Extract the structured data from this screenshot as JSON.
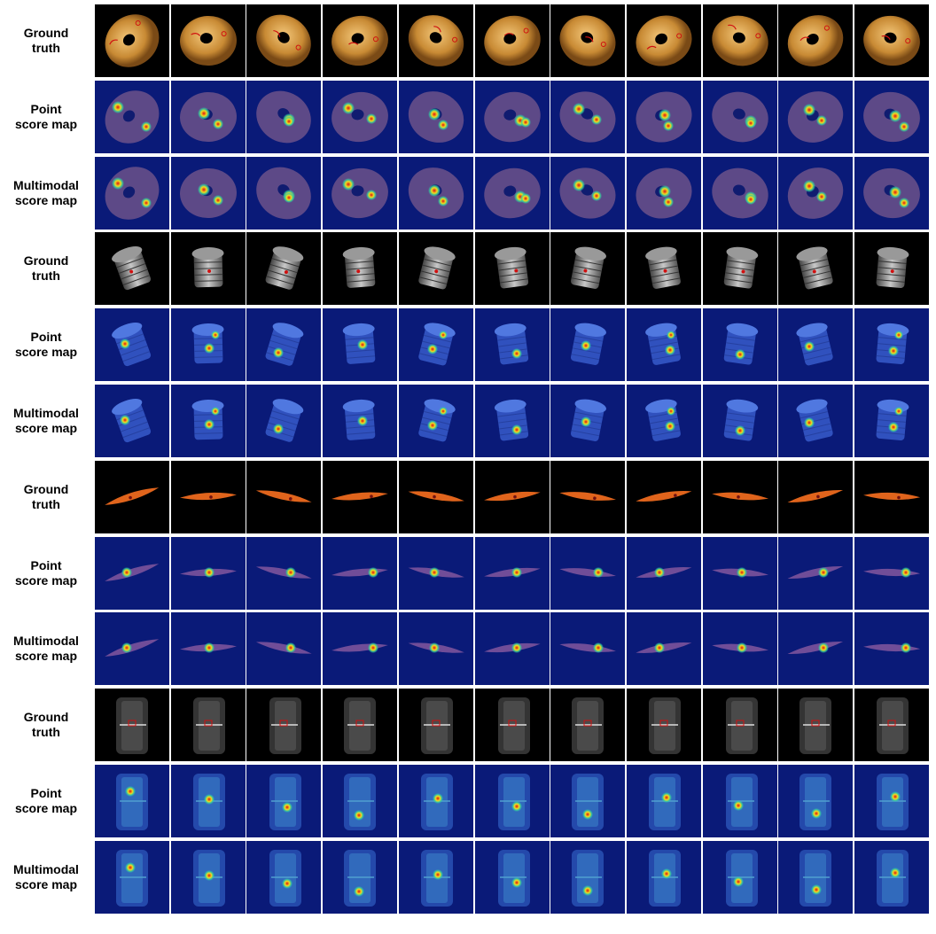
{
  "figure": {
    "groups": [
      {
        "object": "bagel",
        "rows": [
          {
            "label_line1": "Ground",
            "label_line2": "truth",
            "kind": "ground-truth"
          },
          {
            "label_line1": "Point",
            "label_line2": "score map",
            "kind": "score-map"
          },
          {
            "label_line1": "Multimodal",
            "label_line2": "score map",
            "kind": "score-map"
          }
        ]
      },
      {
        "object": "cable-gland",
        "rows": [
          {
            "label_line1": "Ground",
            "label_line2": "truth",
            "kind": "ground-truth"
          },
          {
            "label_line1": "Point",
            "label_line2": "score map",
            "kind": "score-map"
          },
          {
            "label_line1": "Multimodal",
            "label_line2": "score map",
            "kind": "score-map"
          }
        ]
      },
      {
        "object": "carrot",
        "rows": [
          {
            "label_line1": "Ground",
            "label_line2": "truth",
            "kind": "ground-truth"
          },
          {
            "label_line1": "Point",
            "label_line2": "score map",
            "kind": "score-map"
          },
          {
            "label_line1": "Multimodal",
            "label_line2": "score map",
            "kind": "score-map"
          }
        ]
      },
      {
        "object": "tire",
        "rows": [
          {
            "label_line1": "Ground",
            "label_line2": "truth",
            "kind": "ground-truth"
          },
          {
            "label_line1": "Point",
            "label_line2": "score map",
            "kind": "score-map"
          },
          {
            "label_line1": "Multimodal",
            "label_line2": "score map",
            "kind": "score-map"
          }
        ]
      }
    ],
    "columns": 11,
    "colors": {
      "background": "#ffffff",
      "ground_truth_bg": "#000000",
      "score_map_bg": "#0a1a78",
      "anomaly_outline": "#d01010",
      "heat_hot": "#e01010",
      "heat_warm": "#f0e020",
      "heat_mid": "#30d0a0"
    }
  }
}
